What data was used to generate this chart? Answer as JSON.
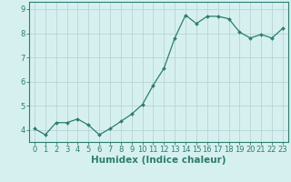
{
  "x": [
    0,
    1,
    2,
    3,
    4,
    5,
    6,
    7,
    8,
    9,
    10,
    11,
    12,
    13,
    14,
    15,
    16,
    17,
    18,
    19,
    20,
    21,
    22,
    23
  ],
  "y": [
    4.05,
    3.8,
    4.3,
    4.3,
    4.45,
    4.2,
    3.8,
    4.05,
    4.35,
    4.65,
    5.05,
    5.85,
    6.55,
    7.8,
    8.75,
    8.4,
    8.7,
    8.7,
    8.6,
    8.05,
    7.8,
    7.95,
    7.8,
    8.2
  ],
  "line_color": "#2d7d6e",
  "marker": "D",
  "marker_size": 2.0,
  "bg_color": "#d6f0f0",
  "grid_color": "#b8d4d4",
  "xlabel": "Humidex (Indice chaleur)",
  "xlim": [
    -0.5,
    23.5
  ],
  "ylim": [
    3.5,
    9.3
  ],
  "yticks": [
    4,
    5,
    6,
    7,
    8,
    9
  ],
  "xticks": [
    0,
    1,
    2,
    3,
    4,
    5,
    6,
    7,
    8,
    9,
    10,
    11,
    12,
    13,
    14,
    15,
    16,
    17,
    18,
    19,
    20,
    21,
    22,
    23
  ],
  "xtick_labels": [
    "0",
    "1",
    "2",
    "3",
    "4",
    "5",
    "6",
    "7",
    "8",
    "9",
    "10",
    "11",
    "12",
    "13",
    "14",
    "15",
    "16",
    "17",
    "18",
    "19",
    "20",
    "21",
    "22",
    "23"
  ],
  "axis_color": "#2d7d6e",
  "tick_color": "#2d7d6e",
  "label_fontsize": 7.5,
  "tick_fontsize": 6.0
}
